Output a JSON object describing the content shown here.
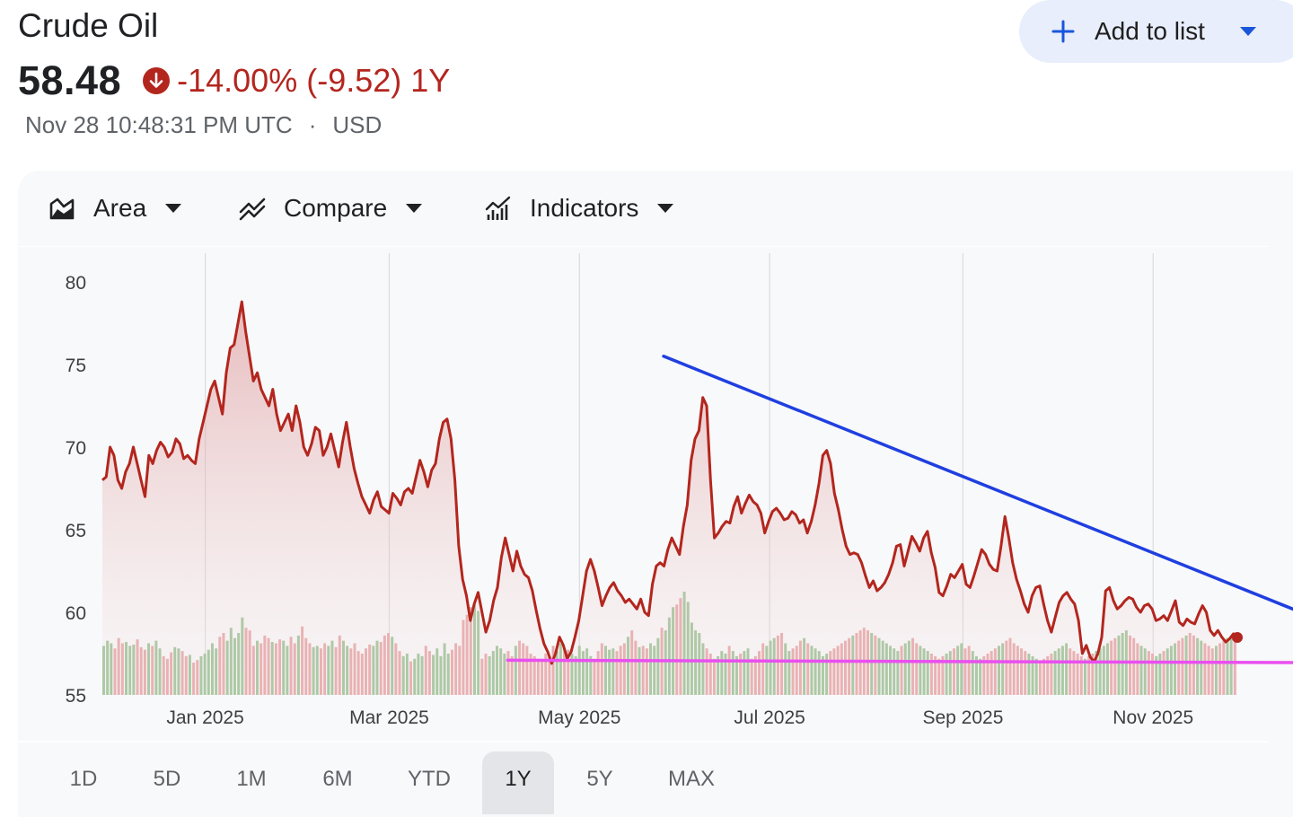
{
  "header": {
    "title": "Crude Oil",
    "price": "58.48",
    "change_text": "-14.00% (-9.52) 1Y",
    "timestamp": "Nov 28 10:48:31 PM UTC",
    "separator": "·",
    "currency": "USD",
    "add_button_label": "Add to list",
    "down_color": "#b3261e"
  },
  "toolbar": {
    "chart_type_label": "Area",
    "compare_label": "Compare",
    "indicators_label": "Indicators",
    "icons": [
      "area-chart-icon",
      "compare-icon",
      "indicators-icon"
    ]
  },
  "ranges": {
    "items": [
      "1D",
      "5D",
      "1M",
      "6M",
      "YTD",
      "1Y",
      "5Y",
      "MAX"
    ],
    "selected": "1Y"
  },
  "chart_data": {
    "type": "area",
    "x_start": "2024-11-29",
    "x_end": "2025-11-28",
    "ylim": [
      55,
      80
    ],
    "y_ticks": [
      80,
      75,
      70,
      65,
      60,
      55
    ],
    "x_tick_labels": [
      "Jan 2025",
      "Mar 2025",
      "May 2025",
      "Jul 2025",
      "Sep 2025",
      "Nov 2025"
    ],
    "x_tick_dates": [
      "2025-01-01",
      "2025-03-01",
      "2025-05-01",
      "2025-07-01",
      "2025-09-01",
      "2025-11-01"
    ],
    "line_color": "#b3261e",
    "series": [
      {
        "values": [
          68.0,
          68.2,
          70.0,
          69.5,
          68.0,
          67.5,
          68.5,
          69.0,
          70.0,
          69.0,
          68.0,
          67.0,
          69.5,
          69.0,
          69.8,
          70.3,
          70.0,
          69.4,
          69.7,
          70.5,
          70.2,
          69.3,
          69.5,
          69.2,
          69.0,
          70.5,
          71.5,
          72.5,
          73.5,
          74.0,
          73.0,
          72.0,
          74.5,
          76.0,
          76.2,
          77.5,
          78.8,
          77.0,
          75.5,
          74.0,
          74.5,
          73.5,
          73.0,
          72.5,
          73.5,
          72.0,
          71.0,
          71.5,
          72.0,
          71.0,
          72.5,
          71.5,
          70.0,
          69.5,
          70.2,
          71.2,
          71.0,
          69.5,
          70.0,
          70.8,
          69.8,
          68.8,
          70.3,
          71.5,
          70.0,
          68.7,
          67.8,
          67.0,
          66.5,
          66.0,
          66.8,
          67.3,
          66.4,
          66.2,
          66.0,
          67.2,
          66.9,
          66.5,
          67.3,
          67.5,
          67.2,
          68.2,
          69.2,
          68.5,
          67.6,
          68.6,
          69.0,
          70.5,
          71.5,
          71.7,
          70.5,
          68.0,
          64.0,
          62.0,
          61.0,
          59.5,
          60.5,
          61.2,
          60.0,
          58.8,
          59.5,
          60.7,
          61.5,
          63.3,
          64.5,
          63.5,
          62.5,
          63.7,
          62.8,
          62.3,
          62.1,
          61.3,
          60.1,
          59.0,
          58.1,
          57.6,
          56.9,
          57.5,
          58.5,
          58.0,
          57.2,
          57.6,
          58.5,
          59.5,
          61.0,
          62.5,
          63.2,
          62.5,
          61.5,
          60.4,
          61.0,
          61.5,
          61.8,
          61.3,
          61.0,
          60.6,
          60.8,
          60.5,
          60.2,
          60.8,
          60.0,
          59.8,
          61.7,
          62.8,
          63.0,
          62.8,
          63.8,
          64.5,
          64.0,
          63.5,
          65.2,
          66.5,
          69.2,
          70.5,
          71.0,
          73.0,
          72.5,
          68.0,
          64.5,
          64.8,
          65.2,
          65.5,
          65.4,
          66.4,
          67.0,
          66.0,
          66.6,
          67.1,
          66.7,
          66.5,
          66.0,
          64.8,
          65.5,
          66.1,
          66.3,
          66.0,
          65.6,
          65.7,
          66.1,
          65.9,
          65.4,
          65.6,
          64.8,
          65.5,
          66.5,
          67.8,
          69.5,
          69.8,
          69.0,
          67.2,
          66.2,
          65.0,
          64.0,
          63.5,
          63.6,
          63.5,
          63.0,
          62.2,
          61.5,
          61.9,
          61.3,
          61.5,
          61.8,
          62.3,
          63.0,
          64.0,
          64.1,
          62.8,
          63.7,
          64.6,
          64.2,
          63.7,
          64.5,
          64.9,
          63.6,
          62.7,
          61.2,
          61.0,
          61.6,
          62.3,
          62.1,
          62.5,
          62.9,
          61.7,
          61.5,
          62.2,
          63.0,
          63.8,
          63.5,
          62.9,
          62.6,
          62.5,
          64.0,
          65.8,
          64.5,
          63.0,
          62.0,
          61.3,
          60.5,
          60.0,
          61.0,
          61.5,
          61.6,
          60.5,
          59.5,
          58.8,
          59.7,
          60.6,
          61.0,
          61.2,
          60.8,
          60.5,
          59.5,
          57.5,
          58.0,
          57.3,
          57.0,
          57.5,
          58.5,
          61.3,
          61.5,
          60.7,
          60.2,
          60.4,
          60.7,
          60.9,
          60.8,
          60.3,
          60.0,
          60.4,
          60.5,
          60.2,
          59.5,
          59.6,
          59.8,
          59.5,
          60.1,
          60.7,
          59.4,
          59.2,
          59.6,
          59.4,
          59.3,
          59.9,
          60.4,
          60.0,
          58.9,
          58.6,
          58.9,
          58.5,
          58.2,
          58.4,
          58.7,
          58.48
        ]
      }
    ],
    "volume": [
      38,
      42,
      40,
      36,
      44,
      40,
      41,
      38,
      39,
      43,
      37,
      35,
      40,
      38,
      42,
      36,
      30,
      28,
      33,
      37,
      36,
      34,
      30,
      31,
      25,
      27,
      30,
      32,
      35,
      40,
      36,
      45,
      48,
      42,
      52,
      44,
      48,
      60,
      52,
      50,
      38,
      42,
      40,
      46,
      44,
      41,
      40,
      43,
      42,
      38,
      45,
      40,
      46,
      53,
      44,
      40,
      37,
      38,
      36,
      40,
      38,
      42,
      37,
      46,
      42,
      38,
      36,
      40,
      34,
      32,
      36,
      39,
      38,
      42,
      41,
      46,
      48,
      45,
      40,
      34,
      30,
      32,
      26,
      28,
      32,
      30,
      38,
      34,
      31,
      36,
      30,
      40,
      32,
      35,
      40,
      38,
      58,
      62,
      68,
      70,
      65,
      28,
      32,
      30,
      34,
      38,
      36,
      32,
      34,
      30,
      38,
      42,
      40,
      38,
      32,
      30,
      28,
      26,
      32,
      30,
      38,
      34,
      40,
      36,
      35,
      32,
      30,
      38,
      34,
      36,
      30,
      28,
      34,
      40,
      38,
      35,
      36,
      34,
      38,
      40,
      45,
      50,
      42,
      37,
      38,
      36,
      40,
      38,
      44,
      52,
      50,
      60,
      68,
      70,
      75,
      80,
      72,
      56,
      50,
      48,
      40,
      36,
      32,
      28,
      30,
      34,
      32,
      38,
      34,
      30,
      32,
      34,
      36,
      28,
      30,
      34,
      40,
      38,
      42,
      44,
      46,
      48,
      40,
      34,
      36,
      38,
      42,
      44,
      40,
      38,
      36,
      34,
      30,
      32,
      34,
      36,
      38,
      40,
      42,
      44,
      46,
      48,
      50,
      52,
      50,
      48,
      46,
      44,
      42,
      40,
      38,
      36,
      34,
      38,
      40,
      42,
      44,
      40,
      38,
      36,
      34,
      32,
      30,
      28,
      30,
      32,
      34,
      36,
      38,
      40,
      36,
      38,
      34,
      30,
      28,
      30,
      32,
      34,
      36,
      38,
      40,
      42,
      44,
      40,
      38,
      36,
      34,
      32,
      30,
      28,
      26,
      28,
      30,
      32,
      34,
      36,
      38,
      40,
      36,
      34,
      32,
      30,
      28,
      30,
      32,
      34,
      36,
      38,
      40,
      42,
      44,
      46,
      48,
      50,
      46,
      44,
      40,
      38,
      36,
      34,
      32,
      30,
      32,
      34,
      36,
      38,
      40,
      42,
      44,
      46,
      48,
      46,
      44,
      42,
      40,
      38,
      36,
      38,
      40,
      42,
      44,
      46,
      48
    ],
    "trendlines": [
      {
        "name": "resistance",
        "color": "#1f3fe0",
        "from": {
          "date": "2025-05-28",
          "value": 75.5
        },
        "to": {
          "date": "2025-12-25",
          "value": 59.5
        }
      },
      {
        "name": "support",
        "color": "#e94ff0",
        "from": {
          "date": "2025-04-08",
          "value": 57.1
        },
        "to": {
          "date": "2025-12-30",
          "value": 56.95
        }
      }
    ],
    "grid": "vertical",
    "legend": "none"
  }
}
